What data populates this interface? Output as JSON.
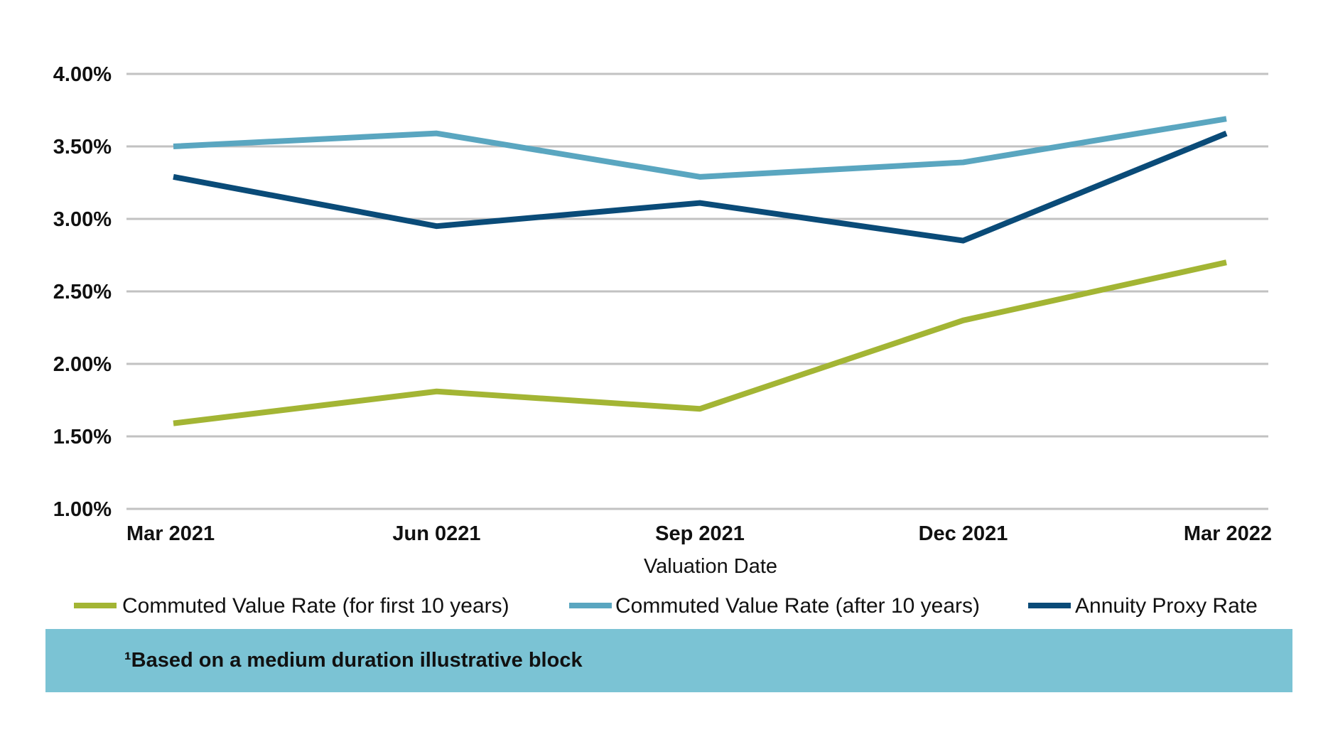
{
  "chart_data": {
    "type": "line",
    "categories": [
      "Mar 2021",
      "Jun 0221",
      "Sep 2021",
      "Dec 2021",
      "Mar 2022"
    ],
    "series": [
      {
        "name": "Commuted Value Rate (for first 10 years)",
        "color": "#a3b534",
        "values": [
          1.59,
          1.81,
          1.69,
          2.3,
          2.7
        ]
      },
      {
        "name": "Commuted Value Rate (after 10 years)",
        "color": "#5aa6c0",
        "values": [
          3.5,
          3.59,
          3.29,
          3.39,
          3.69
        ]
      },
      {
        "name": "Annuity Proxy Rate",
        "color": "#0a4b78",
        "values": [
          3.29,
          2.95,
          3.11,
          2.85,
          3.59
        ]
      }
    ],
    "yticks": [
      "1.00%",
      "1.50%",
      "2.00%",
      "2.50%",
      "3.00%",
      "3.50%",
      "4.00%"
    ],
    "ylim": [
      1.0,
      4.0
    ],
    "xlabel": "Valuation Date",
    "ylabel": "",
    "grid": true,
    "gridline_color": "#c2c2c2",
    "legend_position": "bottom"
  },
  "footnote": "¹Based on a medium duration illustrative block",
  "footnote_bg": "#7bc3d4"
}
